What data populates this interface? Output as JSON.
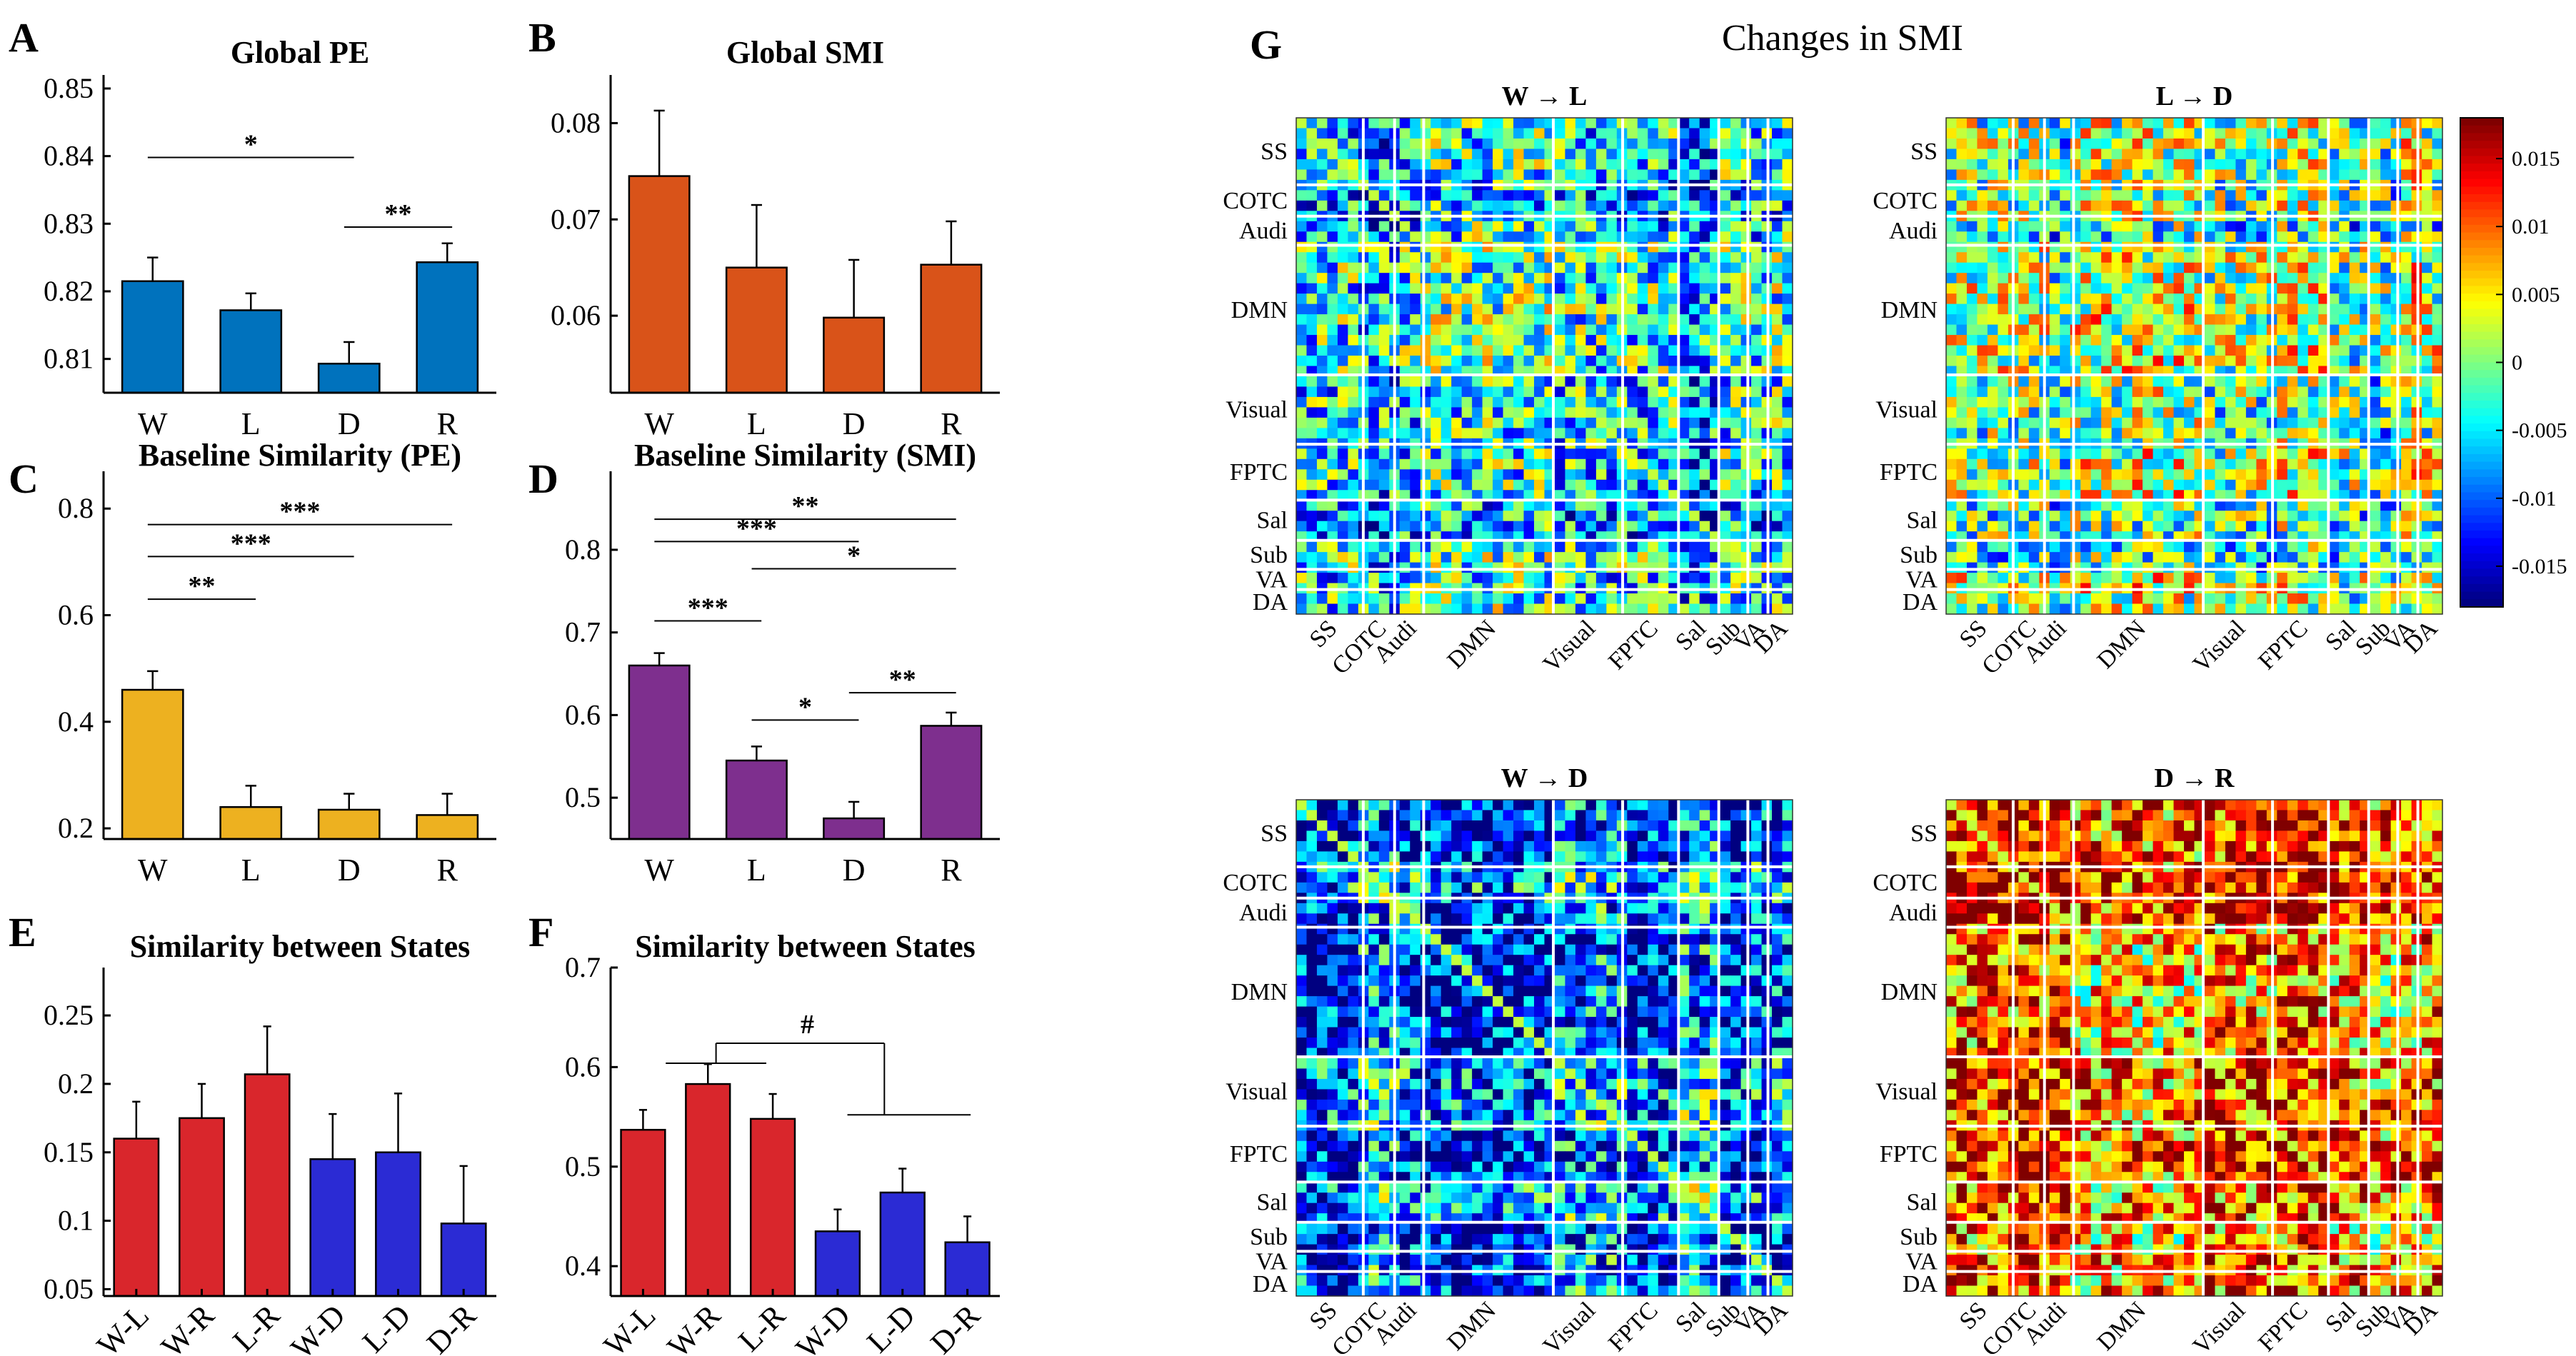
{
  "figure": {
    "panel_g_letter": "G",
    "panel_g_title": "Changes in SMI"
  },
  "colors": {
    "global_pe": "#0072BD",
    "global_smi": "#D95319",
    "baseline_pe": "#EDB120",
    "baseline_smi": "#7E2F8E",
    "wake_like": "#D9262C",
    "deep": "#2B2BD4"
  },
  "chart_data": [
    {
      "id": "A",
      "letter": "A",
      "type": "bar",
      "title": "Global PE",
      "color": "#0072BD",
      "categories": [
        "W",
        "L",
        "D",
        "R"
      ],
      "values": [
        0.8215,
        0.8172,
        0.8093,
        0.8243
      ],
      "errors": [
        0.0035,
        0.0025,
        0.0032,
        0.0028
      ],
      "ylim": [
        0.805,
        0.852
      ],
      "yticks": [
        0.81,
        0.82,
        0.83,
        0.84,
        0.85
      ],
      "tick_labels": [
        "0.81",
        "0.82",
        "0.83",
        "0.84",
        "0.85"
      ],
      "sig": [
        {
          "from": 0,
          "to": 2,
          "y": 0.8398,
          "label": "*"
        },
        {
          "from": 2,
          "to": 3,
          "y": 0.8295,
          "label": "**"
        }
      ]
    },
    {
      "id": "B",
      "letter": "B",
      "type": "bar",
      "title": "Global SMI",
      "color": "#D95319",
      "categories": [
        "W",
        "L",
        "D",
        "R"
      ],
      "values": [
        0.0745,
        0.065,
        0.0598,
        0.0653
      ],
      "errors": [
        0.0068,
        0.0065,
        0.006,
        0.0045
      ],
      "ylim": [
        0.052,
        0.085
      ],
      "yticks": [
        0.06,
        0.07,
        0.08
      ],
      "tick_labels": [
        "0.06",
        "0.07",
        "0.08"
      ],
      "sig": []
    },
    {
      "id": "C",
      "letter": "C",
      "type": "bar",
      "title": "Baseline Similarity (PE)",
      "color": "#EDB120",
      "categories": [
        "W",
        "L",
        "D",
        "R"
      ],
      "values": [
        0.46,
        0.24,
        0.235,
        0.225
      ],
      "errors": [
        0.035,
        0.04,
        0.03,
        0.04
      ],
      "ylim": [
        0.18,
        0.87
      ],
      "yticks": [
        0.2,
        0.4,
        0.6,
        0.8
      ],
      "tick_labels": [
        "0.2",
        "0.4",
        "0.6",
        "0.8"
      ],
      "sig": [
        {
          "from": 0,
          "to": 3,
          "y": 0.77,
          "label": "***"
        },
        {
          "from": 0,
          "to": 2,
          "y": 0.71,
          "label": "***"
        },
        {
          "from": 0,
          "to": 1,
          "y": 0.63,
          "label": "**"
        }
      ]
    },
    {
      "id": "D",
      "letter": "D",
      "type": "bar",
      "title": "Baseline Similarity (SMI)",
      "color": "#7E2F8E",
      "categories": [
        "W",
        "L",
        "D",
        "R"
      ],
      "values": [
        0.66,
        0.545,
        0.475,
        0.587
      ],
      "errors": [
        0.015,
        0.017,
        0.02,
        0.016
      ],
      "ylim": [
        0.45,
        0.895
      ],
      "yticks": [
        0.5,
        0.6,
        0.7,
        0.8
      ],
      "tick_labels": [
        "0.5",
        "0.6",
        "0.7",
        "0.8"
      ],
      "sig": [
        {
          "from": 0,
          "to": 3,
          "y": 0.837,
          "label": "**"
        },
        {
          "from": 0,
          "to": 2,
          "y": 0.81,
          "label": "***"
        },
        {
          "from": 1,
          "to": 3,
          "y": 0.777,
          "label": "*"
        },
        {
          "from": 0,
          "to": 1,
          "y": 0.714,
          "label": "***"
        },
        {
          "from": 1,
          "to": 2,
          "y": 0.594,
          "label": "*"
        },
        {
          "from": 2,
          "to": 3,
          "y": 0.627,
          "label": "**"
        }
      ]
    },
    {
      "id": "E",
      "letter": "E",
      "type": "bar",
      "title": "Similarity between States",
      "categories": [
        "W-L",
        "W-R",
        "L-R",
        "W-D",
        "L-D",
        "D-R"
      ],
      "values": [
        0.16,
        0.175,
        0.207,
        0.145,
        0.15,
        0.098
      ],
      "errors": [
        0.027,
        0.025,
        0.035,
        0.033,
        0.043,
        0.042
      ],
      "bar_colors": [
        "#D9262C",
        "#D9262C",
        "#D9262C",
        "#2B2BD4",
        "#2B2BD4",
        "#2B2BD4"
      ],
      "ylim": [
        0.045,
        0.285
      ],
      "yticks": [
        0.05,
        0.1,
        0.15,
        0.2,
        0.25
      ],
      "tick_labels": [
        "0.05",
        "0.1",
        "0.15",
        "0.2",
        "0.25"
      ],
      "sig": []
    },
    {
      "id": "F",
      "letter": "F",
      "type": "bar",
      "title": "Similarity between States",
      "categories": [
        "W-L",
        "W-R",
        "L-R",
        "W-D",
        "L-D",
        "D-R"
      ],
      "values": [
        0.537,
        0.583,
        0.548,
        0.435,
        0.474,
        0.424
      ],
      "errors": [
        0.02,
        0.02,
        0.025,
        0.022,
        0.024,
        0.026
      ],
      "bar_colors": [
        "#D9262C",
        "#D9262C",
        "#D9262C",
        "#2B2BD4",
        "#2B2BD4",
        "#2B2BD4"
      ],
      "ylim": [
        0.37,
        0.7
      ],
      "yticks": [
        0.4,
        0.5,
        0.6,
        0.7
      ],
      "tick_labels": [
        "0.4",
        "0.5",
        "0.6",
        "0.7"
      ],
      "bracket_label": "#",
      "sig": []
    },
    {
      "id": "G",
      "type": "heatmap",
      "title": "Changes in SMI",
      "matrices": [
        {
          "title": "W → L",
          "bias": -0.45
        },
        {
          "title": "L → D",
          "bias": -0.05
        },
        {
          "title": "W → D",
          "bias": -0.5
        },
        {
          "title": "D → R",
          "bias": 0.6
        }
      ],
      "networks": [
        "SS",
        "COTC",
        "Audi",
        "DMN",
        "Visual",
        "FPTC",
        "Sal",
        "Sub",
        "VA",
        "DA"
      ],
      "network_sizes": [
        30,
        14,
        13,
        58,
        31,
        25,
        18,
        13,
        9,
        11
      ],
      "colorbar": {
        "min": -0.018,
        "max": 0.018,
        "ticks": [
          -0.015,
          -0.01,
          -0.005,
          0,
          0.005,
          0.01,
          0.015
        ],
        "tick_labels": [
          "-0.015",
          "-0.01",
          "-0.005",
          "0",
          "0.005",
          "0.01",
          "0.015"
        ]
      }
    }
  ]
}
